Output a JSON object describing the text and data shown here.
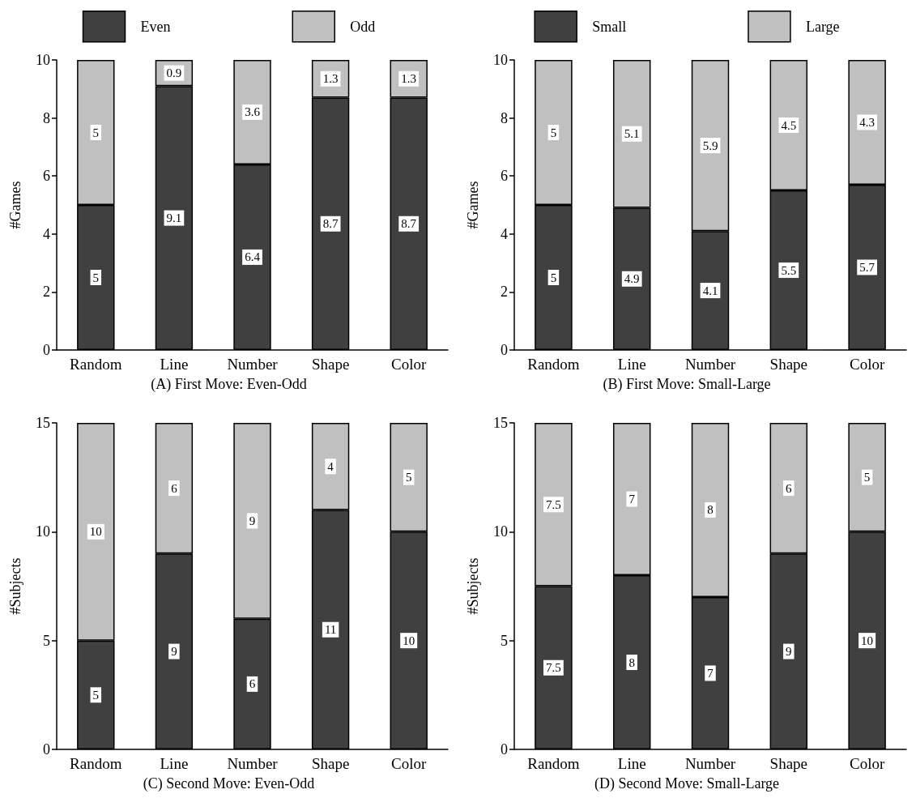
{
  "chart_data": [
    {
      "type": "bar",
      "title": "(A) First Move: Even-Odd",
      "ylabel": "#Games",
      "categories": [
        "Random",
        "Line",
        "Number",
        "Shape",
        "Color"
      ],
      "stacked": true,
      "data_labels": true,
      "legend": "top",
      "grid": false,
      "ylim": [
        0,
        10
      ],
      "yticks": [
        0,
        2,
        4,
        6,
        8,
        10
      ],
      "series": [
        {
          "name": "Even",
          "color": "#404040",
          "values": [
            5,
            9.1,
            6.4,
            8.7,
            8.7
          ]
        },
        {
          "name": "Odd",
          "color": "#c0c0c0",
          "values": [
            5,
            0.9,
            3.6,
            1.3,
            1.3
          ]
        }
      ]
    },
    {
      "type": "bar",
      "title": "(B) First Move: Small-Large",
      "ylabel": "#Games",
      "categories": [
        "Random",
        "Line",
        "Number",
        "Shape",
        "Color"
      ],
      "stacked": true,
      "data_labels": true,
      "legend": "top",
      "grid": false,
      "ylim": [
        0,
        10
      ],
      "yticks": [
        0,
        2,
        4,
        6,
        8,
        10
      ],
      "series": [
        {
          "name": "Small",
          "color": "#404040",
          "values": [
            5,
            4.9,
            4.1,
            5.5,
            5.7
          ]
        },
        {
          "name": "Large",
          "color": "#c0c0c0",
          "values": [
            5,
            5.1,
            5.9,
            4.5,
            4.3
          ]
        }
      ]
    },
    {
      "type": "bar",
      "title": "(C) Second Move: Even-Odd",
      "ylabel": "#Subjects",
      "categories": [
        "Random",
        "Line",
        "Number",
        "Shape",
        "Color"
      ],
      "stacked": true,
      "data_labels": true,
      "legend": false,
      "grid": false,
      "ylim": [
        0,
        15
      ],
      "yticks": [
        0,
        5,
        10,
        15
      ],
      "series": [
        {
          "color": "#404040",
          "values": [
            5,
            9,
            6,
            11,
            10
          ]
        },
        {
          "color": "#c0c0c0",
          "values": [
            10,
            6,
            9,
            4,
            5
          ]
        }
      ]
    },
    {
      "type": "bar",
      "title": "(D) Second Move: Small-Large",
      "ylabel": "#Subjects",
      "categories": [
        "Random",
        "Line",
        "Number",
        "Shape",
        "Color"
      ],
      "stacked": true,
      "data_labels": true,
      "legend": false,
      "grid": false,
      "ylim": [
        0,
        15
      ],
      "yticks": [
        0,
        5,
        10,
        15
      ],
      "series": [
        {
          "color": "#404040",
          "values": [
            7.5,
            8,
            7,
            9,
            10
          ]
        },
        {
          "color": "#c0c0c0",
          "values": [
            7.5,
            7,
            8,
            6,
            5
          ]
        }
      ]
    }
  ]
}
